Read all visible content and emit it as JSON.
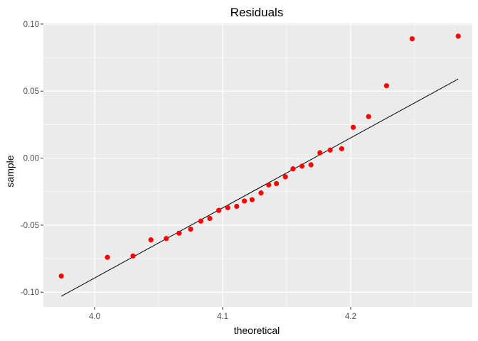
{
  "chart_data": {
    "type": "scatter",
    "title": "Residuals",
    "xlabel": "theoretical",
    "ylabel": "sample",
    "xlim": [
      3.96,
      4.295
    ],
    "ylim": [
      -0.111,
      0.101
    ],
    "x_ticks": [
      4.0,
      4.1,
      4.2
    ],
    "x_tick_labels": [
      "4.0",
      "4.1",
      "4.2"
    ],
    "y_ticks": [
      -0.1,
      -0.05,
      0.0,
      0.05,
      0.1
    ],
    "y_tick_labels": [
      "-0.10",
      "-0.05",
      "0.00",
      "0.05",
      "0.10"
    ],
    "grid": true,
    "panel_background": "#ebebeb",
    "grid_color": "#ffffff",
    "point_color": "#ff0000",
    "line_color": "#000000",
    "points": [
      {
        "x": 3.974,
        "y": -0.088
      },
      {
        "x": 4.01,
        "y": -0.074
      },
      {
        "x": 4.03,
        "y": -0.073
      },
      {
        "x": 4.044,
        "y": -0.061
      },
      {
        "x": 4.056,
        "y": -0.06
      },
      {
        "x": 4.066,
        "y": -0.056
      },
      {
        "x": 4.075,
        "y": -0.053
      },
      {
        "x": 4.083,
        "y": -0.047
      },
      {
        "x": 4.09,
        "y": -0.045
      },
      {
        "x": 4.097,
        "y": -0.039
      },
      {
        "x": 4.104,
        "y": -0.037
      },
      {
        "x": 4.111,
        "y": -0.036
      },
      {
        "x": 4.117,
        "y": -0.032
      },
      {
        "x": 4.123,
        "y": -0.031
      },
      {
        "x": 4.13,
        "y": -0.026
      },
      {
        "x": 4.136,
        "y": -0.02
      },
      {
        "x": 4.142,
        "y": -0.019
      },
      {
        "x": 4.149,
        "y": -0.014
      },
      {
        "x": 4.155,
        "y": -0.008
      },
      {
        "x": 4.162,
        "y": -0.006
      },
      {
        "x": 4.169,
        "y": -0.005
      },
      {
        "x": 4.176,
        "y": 0.004
      },
      {
        "x": 4.184,
        "y": 0.006
      },
      {
        "x": 4.193,
        "y": 0.007
      },
      {
        "x": 4.202,
        "y": 0.023
      },
      {
        "x": 4.214,
        "y": 0.031
      },
      {
        "x": 4.228,
        "y": 0.054
      },
      {
        "x": 4.248,
        "y": 0.089
      },
      {
        "x": 4.284,
        "y": 0.091
      }
    ],
    "reference_line": {
      "x": [
        3.974,
        4.284
      ],
      "y": [
        -0.103,
        0.059
      ]
    }
  }
}
